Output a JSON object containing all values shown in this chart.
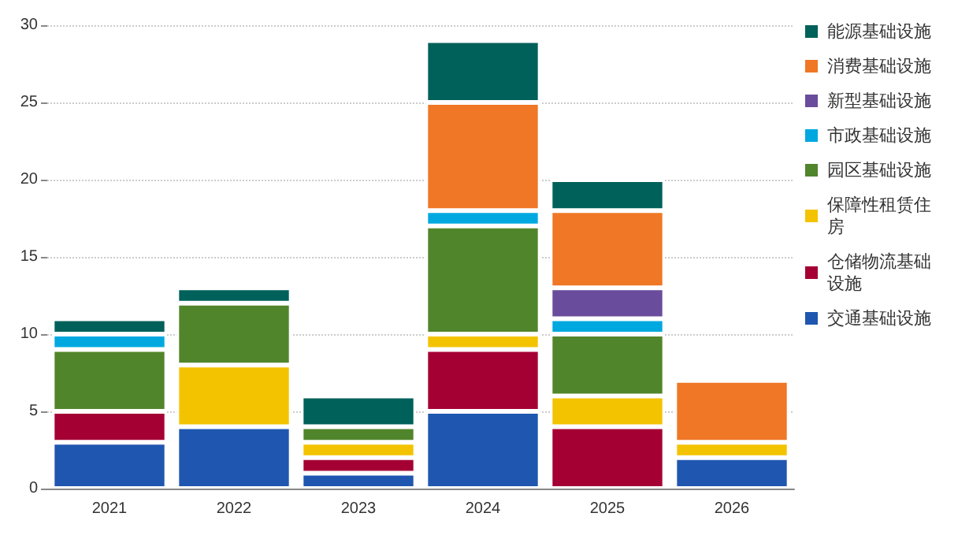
{
  "chart_data": {
    "type": "bar",
    "stacked": true,
    "categories": [
      "2021",
      "2022",
      "2023",
      "2024",
      "2025",
      "2026"
    ],
    "series": [
      {
        "name": "交通基础设施",
        "color": "#1f56b0",
        "values": [
          3,
          4,
          1,
          5,
          null,
          2
        ]
      },
      {
        "name": "仓储物流基础设施",
        "color": "#a50034",
        "values": [
          2,
          null,
          1,
          4,
          4,
          null
        ]
      },
      {
        "name": "保障性租赁住房",
        "color": "#f3c300",
        "values": [
          null,
          4,
          1,
          1,
          2,
          1
        ]
      },
      {
        "name": "园区基础设施",
        "color": "#51852b",
        "values": [
          4,
          4,
          1,
          7,
          4,
          null
        ]
      },
      {
        "name": "市政基础设施",
        "color": "#00a8e0",
        "values": [
          1,
          null,
          null,
          1,
          1,
          null
        ]
      },
      {
        "name": "新型基础设施",
        "color": "#6a4c9c",
        "values": [
          null,
          null,
          null,
          null,
          2,
          null
        ]
      },
      {
        "name": "消费基础设施",
        "color": "#ef7725",
        "values": [
          null,
          null,
          null,
          7,
          5,
          4
        ]
      },
      {
        "name": "能源基础设施",
        "color": "#00605a",
        "values": [
          1,
          1,
          2,
          4,
          2,
          null
        ]
      }
    ],
    "ylim": [
      0,
      30
    ],
    "yticks": [
      0,
      5,
      10,
      15,
      20,
      25,
      30
    ],
    "grid": "y",
    "legend": "top right"
  }
}
